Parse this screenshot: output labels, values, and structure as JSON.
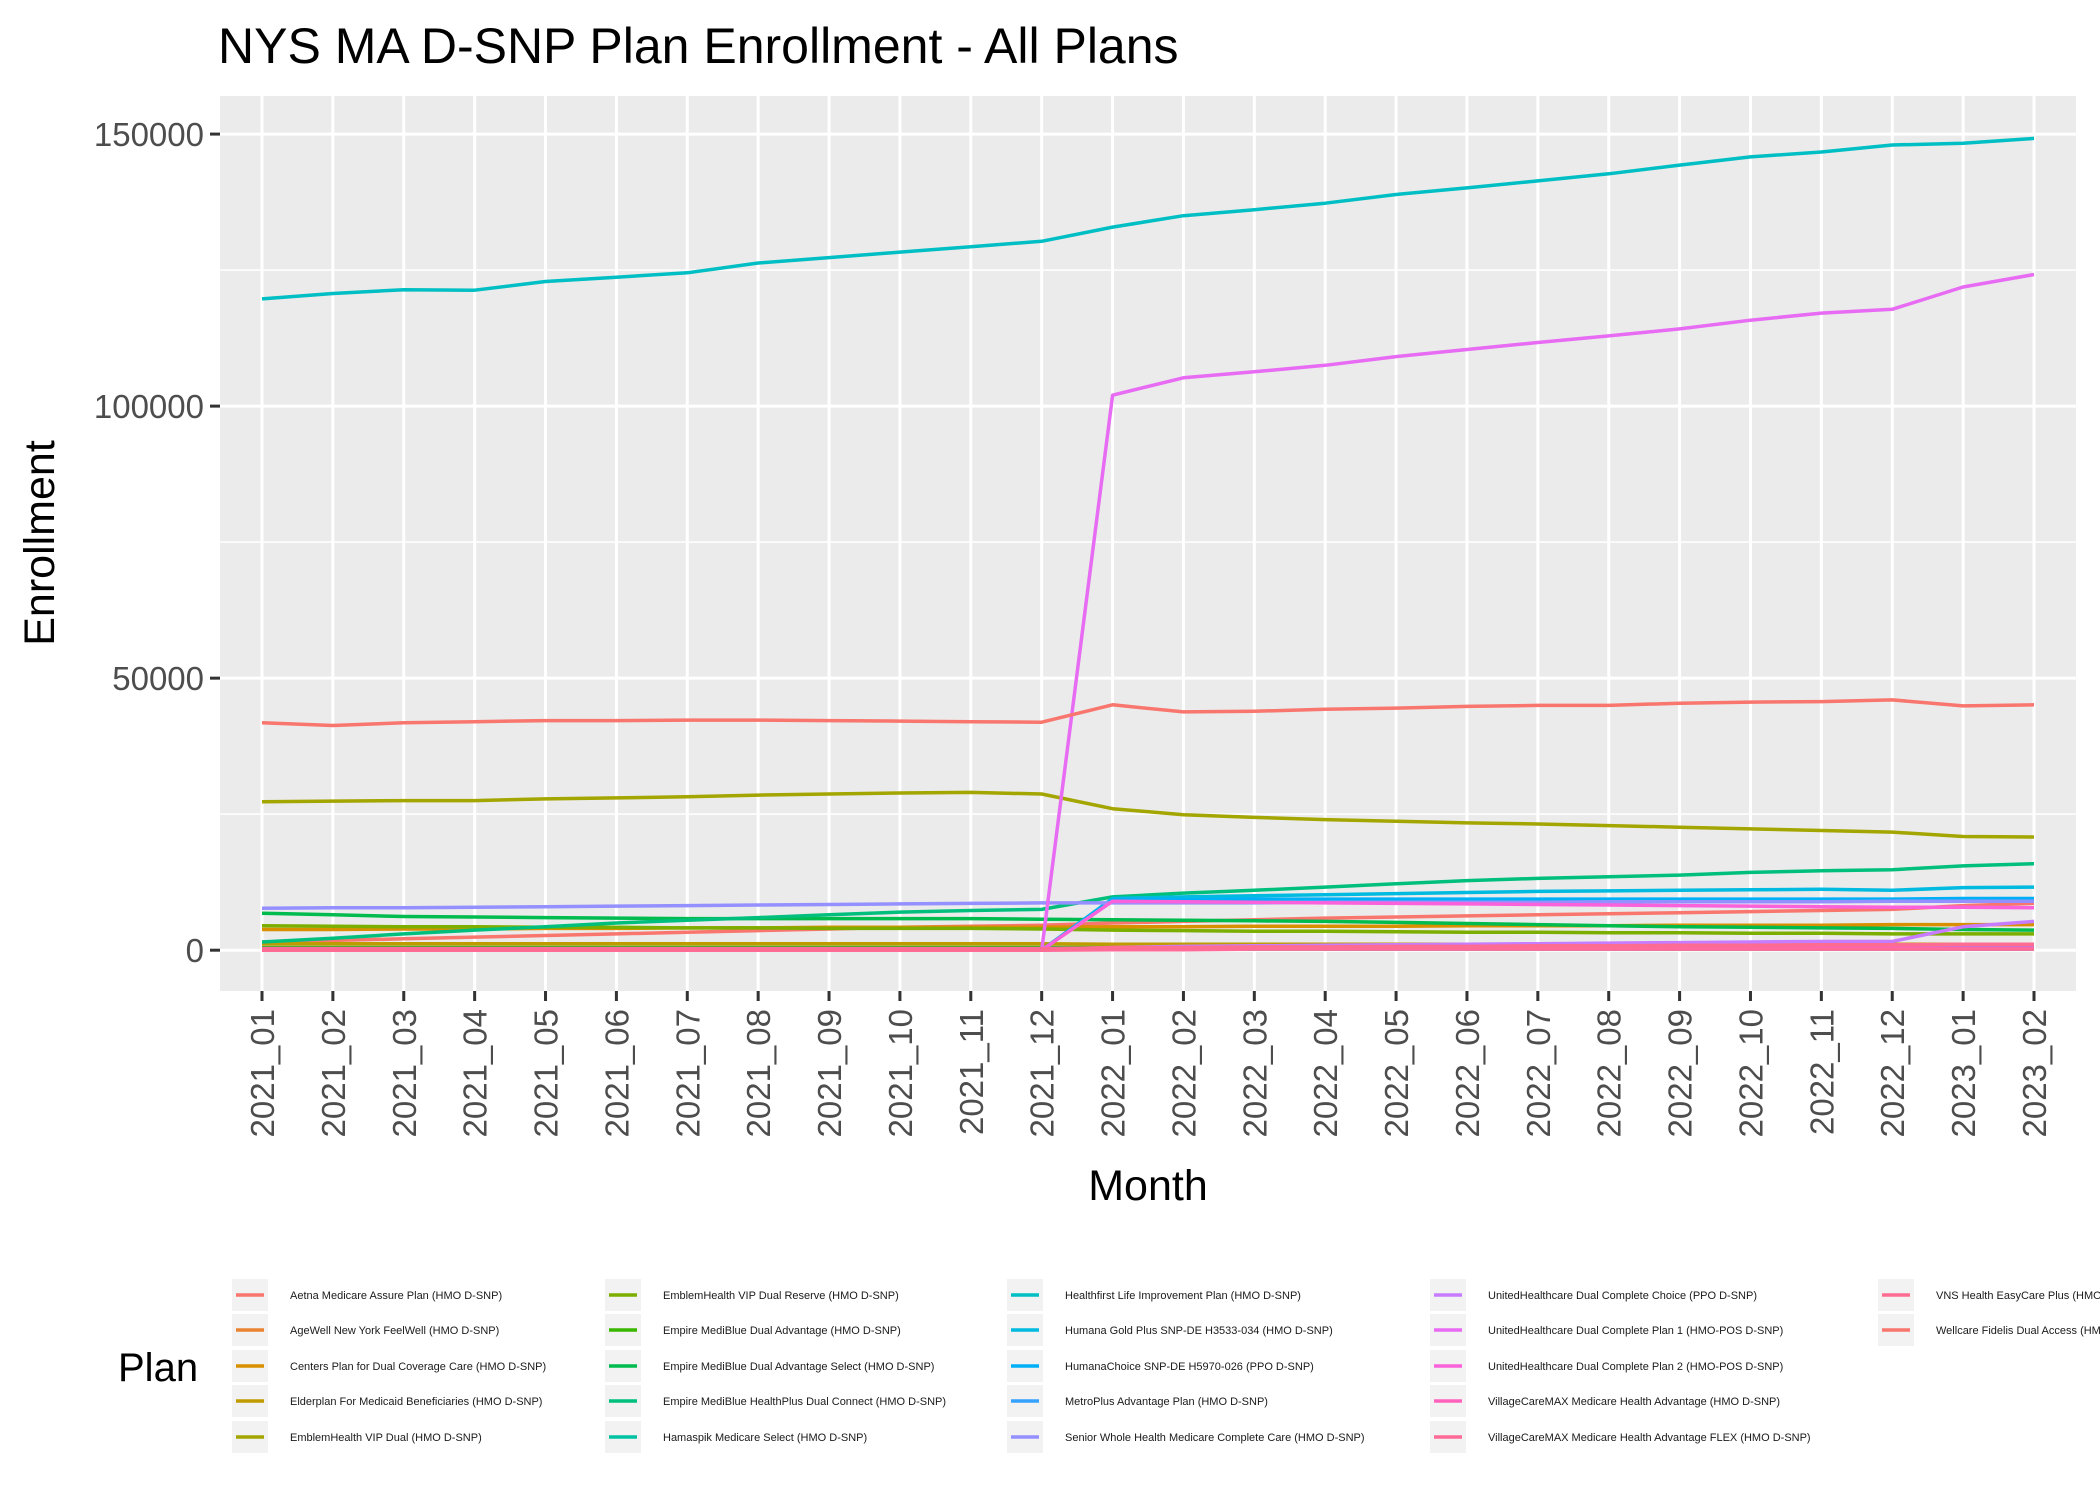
{
  "chart_data": {
    "type": "line",
    "title": "NYS MA D-SNP Plan Enrollment - All Plans",
    "xlabel": "Month",
    "ylabel": "Enrollment",
    "legend_title": "Plan",
    "legend_position": "bottom",
    "grid": true,
    "ylim": [
      -7500,
      157000
    ],
    "yticks": [
      0,
      50000,
      100000,
      150000
    ],
    "x": [
      "2021_01",
      "2021_02",
      "2021_03",
      "2021_04",
      "2021_05",
      "2021_06",
      "2021_07",
      "2021_08",
      "2021_09",
      "2021_10",
      "2021_11",
      "2021_12",
      "2022_01",
      "2022_02",
      "2022_03",
      "2022_04",
      "2022_05",
      "2022_06",
      "2022_07",
      "2022_08",
      "2022_09",
      "2022_10",
      "2022_11",
      "2022_12",
      "2023_01",
      "2023_02"
    ],
    "series": [
      {
        "name": "Aetna Medicare Assure Plan (HMO D-SNP)",
        "color": "#F8766D",
        "values": [
          1500,
          1800,
          2100,
          2400,
          2700,
          3000,
          3300,
          3600,
          3900,
          4200,
          4400,
          4600,
          5000,
          5300,
          5600,
          5900,
          6100,
          6300,
          6500,
          6700,
          6900,
          7100,
          7300,
          7500,
          8200,
          8600
        ]
      },
      {
        "name": "AgeWell New York FeelWell (HMO D-SNP)",
        "color": "#EA8331",
        "values": [
          300,
          300,
          300,
          300,
          300,
          300,
          300,
          300,
          300,
          300,
          300,
          300,
          300,
          300,
          300,
          300,
          300,
          300,
          300,
          300,
          300,
          300,
          300,
          300,
          300,
          300
        ]
      },
      {
        "name": "Centers Plan for Dual Coverage Care (HMO D-SNP)",
        "color": "#D89000",
        "values": [
          3800,
          3800,
          3900,
          3900,
          4000,
          4000,
          4100,
          4100,
          4200,
          4200,
          4200,
          4200,
          4300,
          4300,
          4400,
          4400,
          4400,
          4500,
          4500,
          4500,
          4600,
          4600,
          4600,
          4700,
          4700,
          4700
        ]
      },
      {
        "name": "Elderplan For Medicaid Beneficiaries (HMO D-SNP)",
        "color": "#C09B00",
        "values": [
          1200,
          1200,
          1200,
          1200,
          1200,
          1200,
          1200,
          1200,
          1200,
          1200,
          1200,
          1200,
          1100,
          1100,
          1100,
          1100,
          1100,
          1100,
          1100,
          1100,
          1100,
          1100,
          1100,
          1100,
          1100,
          1100
        ]
      },
      {
        "name": "EmblemHealth VIP Dual (HMO D-SNP)",
        "color": "#A3A500",
        "values": [
          27300,
          27400,
          27500,
          27500,
          27800,
          28000,
          28200,
          28500,
          28700,
          28900,
          29000,
          28700,
          26000,
          24900,
          24400,
          24000,
          23700,
          23400,
          23200,
          22900,
          22600,
          22300,
          22000,
          21700,
          20900,
          20800
        ]
      },
      {
        "name": "EmblemHealth VIP Dual Reserve (HMO D-SNP)",
        "color": "#7CAE00",
        "values": [
          4500,
          4400,
          4300,
          4300,
          4200,
          4200,
          4100,
          4100,
          4000,
          4000,
          4000,
          3900,
          3700,
          3600,
          3500,
          3500,
          3400,
          3300,
          3300,
          3200,
          3200,
          3100,
          3100,
          3000,
          3000,
          3000
        ]
      },
      {
        "name": "Empire MediBlue Dual Advantage (HMO D-SNP)",
        "color": "#39B600",
        "values": [
          500,
          500,
          500,
          500,
          500,
          500,
          500,
          500,
          500,
          500,
          500,
          500,
          500,
          500,
          500,
          500,
          500,
          500,
          500,
          500,
          500,
          500,
          500,
          500,
          500,
          500
        ]
      },
      {
        "name": "Empire MediBlue Dual Advantage Select (HMO D-SNP)",
        "color": "#00BB4E",
        "values": [
          6800,
          6500,
          6200,
          6100,
          6000,
          5900,
          5800,
          5800,
          5800,
          5800,
          5800,
          5700,
          5600,
          5500,
          5400,
          5300,
          5100,
          4900,
          4700,
          4500,
          4300,
          4200,
          4100,
          4000,
          3800,
          3700
        ]
      },
      {
        "name": "Empire MediBlue HealthPlus Dual Connect (HMO D-SNP)",
        "color": "#00BF7D",
        "values": [
          1500,
          2200,
          3000,
          3700,
          4300,
          5000,
          5500,
          6000,
          6500,
          7000,
          7300,
          7500,
          9800,
          10500,
          11000,
          11600,
          12200,
          12800,
          13200,
          13500,
          13800,
          14300,
          14600,
          14800,
          15500,
          15900
        ]
      },
      {
        "name": "Hamaspik Medicare Select (HMO D-SNP)",
        "color": "#00C1A3",
        "values": [
          200,
          200,
          200,
          200,
          200,
          200,
          200,
          200,
          200,
          200,
          200,
          200,
          200,
          200,
          200,
          200,
          200,
          200,
          200,
          200,
          200,
          200,
          200,
          200,
          200,
          200
        ]
      },
      {
        "name": "Healthfirst Life Improvement Plan (HMO D-SNP)",
        "color": "#00BFC4",
        "values": [
          119700,
          120700,
          121400,
          121300,
          122900,
          123700,
          124500,
          126300,
          127300,
          128300,
          129300,
          130300,
          132900,
          135000,
          136100,
          137300,
          138900,
          140100,
          141400,
          142700,
          144300,
          145800,
          146700,
          148000,
          148300,
          149200
        ]
      },
      {
        "name": "Humana Gold Plus SNP-DE H3533-034 (HMO D-SNP)",
        "color": "#00BAE0",
        "values": [
          0,
          0,
          0,
          0,
          0,
          0,
          0,
          0,
          0,
          0,
          0,
          0,
          9500,
          9800,
          10000,
          10200,
          10400,
          10600,
          10800,
          10900,
          11000,
          11100,
          11200,
          11000,
          11500,
          11600
        ]
      },
      {
        "name": "HumanaChoice SNP-DE H5970-026 (PPO D-SNP)",
        "color": "#00B0F6",
        "values": [
          0,
          0,
          0,
          0,
          0,
          0,
          0,
          0,
          0,
          0,
          0,
          0,
          9300,
          9300,
          9400,
          9400,
          9400,
          9400,
          9400,
          9400,
          9400,
          9400,
          9400,
          9400,
          9500,
          9500
        ]
      },
      {
        "name": "MetroPlus Advantage Plan (HMO D-SNP)",
        "color": "#35A2FF",
        "values": [
          300,
          300,
          300,
          300,
          300,
          300,
          300,
          300,
          300,
          300,
          300,
          300,
          400,
          400,
          400,
          400,
          400,
          400,
          400,
          400,
          400,
          400,
          400,
          400,
          500,
          500
        ]
      },
      {
        "name": "Senior Whole Health Medicare Complete Care (HMO D-SNP)",
        "color": "#9590FF",
        "values": [
          7700,
          7800,
          7800,
          7900,
          8000,
          8100,
          8200,
          8300,
          8400,
          8500,
          8600,
          8700,
          8700,
          8700,
          8700,
          8800,
          8800,
          8800,
          8800,
          8900,
          8900,
          8900,
          8900,
          9000,
          9000,
          9000
        ]
      },
      {
        "name": "UnitedHealthcare Dual Complete Choice (PPO D-SNP)",
        "color": "#C77CFF",
        "values": [
          0,
          0,
          0,
          0,
          0,
          0,
          0,
          0,
          0,
          0,
          0,
          0,
          500,
          700,
          800,
          900,
          1000,
          1100,
          1200,
          1300,
          1400,
          1500,
          1600,
          1600,
          4300,
          5300
        ]
      },
      {
        "name": "UnitedHealthcare Dual Complete Plan 1 (HMO-POS D-SNP)",
        "color": "#E76BF3",
        "values": [
          0,
          0,
          0,
          0,
          0,
          0,
          0,
          0,
          0,
          0,
          0,
          0,
          102000,
          105200,
          106300,
          107500,
          109100,
          110400,
          111700,
          112900,
          114200,
          115800,
          117100,
          117800,
          121900,
          124200
        ]
      },
      {
        "name": "UnitedHealthcare Dual Complete Plan 2 (HMO-POS D-SNP)",
        "color": "#FA62DB",
        "values": [
          0,
          0,
          0,
          0,
          0,
          0,
          0,
          0,
          0,
          0,
          0,
          0,
          9000,
          8900,
          8800,
          8700,
          8600,
          8500,
          8400,
          8300,
          8200,
          8100,
          8000,
          7900,
          7900,
          7800
        ]
      },
      {
        "name": "VillageCareMAX Medicare Health Advantage (HMO D-SNP)",
        "color": "#FF62BC",
        "values": [
          300,
          300,
          300,
          300,
          300,
          300,
          300,
          300,
          300,
          300,
          300,
          300,
          400,
          400,
          400,
          400,
          400,
          400,
          400,
          400,
          400,
          400,
          400,
          400,
          400,
          400
        ]
      },
      {
        "name": "VillageCareMAX Medicare Health Advantage FLEX (HMO D-SNP)",
        "color": "#FF6A98",
        "values": [
          0,
          0,
          0,
          0,
          0,
          0,
          0,
          0,
          0,
          0,
          0,
          0,
          100,
          100,
          200,
          200,
          200,
          200,
          200,
          200,
          200,
          200,
          200,
          200,
          200,
          200
        ]
      },
      {
        "name": "VNS Health EasyCare Plus (HMO D-SNP)",
        "color": "#FF6C91",
        "values": [
          200,
          200,
          200,
          200,
          200,
          200,
          200,
          200,
          200,
          200,
          200,
          200,
          500,
          500,
          600,
          600,
          700,
          700,
          800,
          800,
          900,
          900,
          1000,
          1000,
          1100,
          1100
        ]
      },
      {
        "name": "Wellcare Fidelis Dual Access (HMO D-SNP)",
        "color": "#F8766D",
        "values": [
          41800,
          41300,
          41800,
          42000,
          42200,
          42200,
          42300,
          42300,
          42200,
          42100,
          42000,
          41900,
          45100,
          43800,
          43900,
          44300,
          44500,
          44800,
          45000,
          45000,
          45400,
          45600,
          45700,
          46000,
          44900,
          45100
        ]
      }
    ]
  }
}
